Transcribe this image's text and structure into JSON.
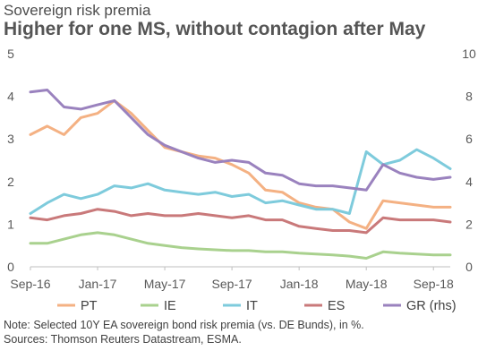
{
  "header": {
    "subtitle": "Sovereign risk premia",
    "title": "Higher for one MS, without contagion after May"
  },
  "footer": {
    "note": "Note: Selected  10Y EA sovereign bond risk premia  (vs. DE Bunds),  in %.",
    "sources": "Sources:  Thomson Reuters Datastream,  ESMA."
  },
  "chart_data": {
    "type": "line",
    "x_ticks": [
      "Sep-16",
      "Jan-17",
      "May-17",
      "Sep-17",
      "Jan-18",
      "May-18",
      "Sep-18"
    ],
    "x_range": [
      "Sep-16",
      "Oct-18"
    ],
    "ylim_left": [
      0,
      5
    ],
    "ylim_right": [
      0,
      10
    ],
    "y_ticks_left": [
      "0",
      "1",
      "2",
      "3",
      "4",
      "5"
    ],
    "y_ticks_right": [
      "0",
      "2",
      "4",
      "6",
      "8",
      "10"
    ],
    "grid": false,
    "legend_position": "bottom",
    "series": [
      {
        "name": "PT",
        "color": "#f4b183",
        "axis": "left",
        "x": [
          "Sep-16",
          "Oct-16",
          "Nov-16",
          "Dec-16",
          "Jan-17",
          "Feb-17",
          "Mar-17",
          "Apr-17",
          "May-17",
          "Jun-17",
          "Jul-17",
          "Aug-17",
          "Sep-17",
          "Oct-17",
          "Nov-17",
          "Dec-17",
          "Jan-18",
          "Feb-18",
          "Mar-18",
          "Apr-18",
          "May-18",
          "Jun-18",
          "Jul-18",
          "Aug-18",
          "Sep-18",
          "Oct-18"
        ],
        "values": [
          3.1,
          3.3,
          3.1,
          3.5,
          3.6,
          3.9,
          3.6,
          3.2,
          2.8,
          2.7,
          2.6,
          2.55,
          2.4,
          2.2,
          1.8,
          1.75,
          1.5,
          1.4,
          1.35,
          1.05,
          0.9,
          1.55,
          1.5,
          1.45,
          1.4,
          1.4
        ]
      },
      {
        "name": "IE",
        "color": "#a9d18e",
        "axis": "left",
        "x": [
          "Sep-16",
          "Oct-16",
          "Nov-16",
          "Dec-16",
          "Jan-17",
          "Feb-17",
          "Mar-17",
          "Apr-17",
          "May-17",
          "Jun-17",
          "Jul-17",
          "Aug-17",
          "Sep-17",
          "Oct-17",
          "Nov-17",
          "Dec-17",
          "Jan-18",
          "Feb-18",
          "Mar-18",
          "Apr-18",
          "May-18",
          "Jun-18",
          "Jul-18",
          "Aug-18",
          "Sep-18",
          "Oct-18"
        ],
        "values": [
          0.55,
          0.55,
          0.65,
          0.75,
          0.8,
          0.75,
          0.65,
          0.55,
          0.5,
          0.45,
          0.42,
          0.4,
          0.38,
          0.38,
          0.35,
          0.35,
          0.32,
          0.3,
          0.28,
          0.25,
          0.2,
          0.35,
          0.32,
          0.3,
          0.28,
          0.28
        ]
      },
      {
        "name": "IT",
        "color": "#7ecbdc",
        "axis": "left",
        "x": [
          "Sep-16",
          "Oct-16",
          "Nov-16",
          "Dec-16",
          "Jan-17",
          "Feb-17",
          "Mar-17",
          "Apr-17",
          "May-17",
          "Jun-17",
          "Jul-17",
          "Aug-17",
          "Sep-17",
          "Oct-17",
          "Nov-17",
          "Dec-17",
          "Jan-18",
          "Feb-18",
          "Mar-18",
          "Apr-18",
          "May-18",
          "Jun-18",
          "Jul-18",
          "Aug-18",
          "Sep-18",
          "Oct-18"
        ],
        "values": [
          1.25,
          1.5,
          1.7,
          1.6,
          1.7,
          1.9,
          1.85,
          1.95,
          1.8,
          1.75,
          1.7,
          1.75,
          1.65,
          1.7,
          1.5,
          1.55,
          1.45,
          1.35,
          1.35,
          1.25,
          2.7,
          2.4,
          2.5,
          2.75,
          2.55,
          2.3
        ]
      },
      {
        "name": "ES",
        "color": "#c9797a",
        "axis": "left",
        "x": [
          "Sep-16",
          "Oct-16",
          "Nov-16",
          "Dec-16",
          "Jan-17",
          "Feb-17",
          "Mar-17",
          "Apr-17",
          "May-17",
          "Jun-17",
          "Jul-17",
          "Aug-17",
          "Sep-17",
          "Oct-17",
          "Nov-17",
          "Dec-17",
          "Jan-18",
          "Feb-18",
          "Mar-18",
          "Apr-18",
          "May-18",
          "Jun-18",
          "Jul-18",
          "Aug-18",
          "Sep-18",
          "Oct-18"
        ],
        "values": [
          1.15,
          1.1,
          1.2,
          1.25,
          1.35,
          1.3,
          1.2,
          1.25,
          1.2,
          1.2,
          1.25,
          1.2,
          1.15,
          1.2,
          1.1,
          1.1,
          0.95,
          0.9,
          0.85,
          0.85,
          0.8,
          1.15,
          1.1,
          1.1,
          1.1,
          1.05
        ]
      },
      {
        "name": "GR (rhs)",
        "color": "#9a82be",
        "axis": "right",
        "x": [
          "Sep-16",
          "Oct-16",
          "Nov-16",
          "Dec-16",
          "Jan-17",
          "Feb-17",
          "Mar-17",
          "Apr-17",
          "May-17",
          "Jun-17",
          "Jul-17",
          "Aug-17",
          "Sep-17",
          "Oct-17",
          "Nov-17",
          "Dec-17",
          "Jan-18",
          "Feb-18",
          "Mar-18",
          "Apr-18",
          "May-18",
          "Jun-18",
          "Jul-18",
          "Aug-18",
          "Sep-18",
          "Oct-18"
        ],
        "values": [
          8.2,
          8.3,
          7.5,
          7.4,
          7.6,
          7.8,
          7.0,
          6.2,
          5.7,
          5.4,
          5.1,
          4.9,
          5.0,
          4.9,
          4.4,
          4.3,
          3.9,
          3.8,
          3.8,
          3.7,
          3.6,
          4.8,
          4.4,
          4.2,
          4.1,
          4.2
        ]
      }
    ]
  }
}
